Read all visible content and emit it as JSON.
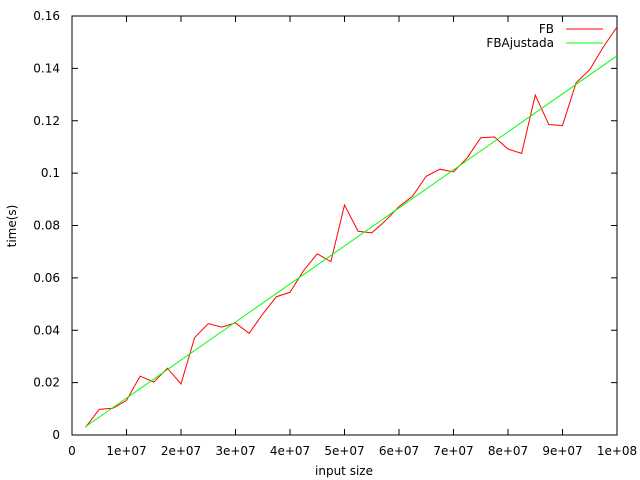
{
  "chart_data": {
    "type": "line",
    "title": "",
    "xlabel": "input size",
    "ylabel": "time(s)",
    "xlim": [
      0,
      100000000
    ],
    "ylim": [
      0,
      0.16
    ],
    "x_ticks": [
      0,
      10000000,
      20000000,
      30000000,
      40000000,
      50000000,
      60000000,
      70000000,
      80000000,
      90000000,
      100000000
    ],
    "x_tick_labels": [
      "0",
      "1e+07",
      "2e+07",
      "3e+07",
      "4e+07",
      "5e+07",
      "6e+07",
      "7e+07",
      "8e+07",
      "9e+07",
      "1e+08"
    ],
    "y_ticks": [
      0,
      0.02,
      0.04,
      0.06,
      0.08,
      0.1,
      0.12,
      0.14,
      0.16
    ],
    "y_tick_labels": [
      "0",
      "0.02",
      "0.04",
      "0.06",
      "0.08",
      "0.1",
      "0.12",
      "0.14",
      "0.16"
    ],
    "grid": false,
    "legend_position": "top-right",
    "series": [
      {
        "name": "FB",
        "color": "#ff0000",
        "x": [
          2500000,
          5000000,
          7500000,
          10000000,
          12500000,
          15000000,
          17500000,
          20000000,
          22500000,
          25000000,
          27500000,
          30000000,
          32500000,
          35000000,
          37500000,
          40000000,
          42500000,
          45000000,
          47500000,
          50000000,
          52500000,
          55000000,
          57500000,
          60000000,
          62500000,
          65000000,
          67500000,
          70000000,
          72500000,
          75000000,
          77500000,
          80000000,
          82500000,
          85000000,
          87500000,
          90000000,
          92500000,
          95000000,
          97500000,
          100000000
        ],
        "y": [
          0.003,
          0.0098,
          0.0102,
          0.0132,
          0.0225,
          0.0202,
          0.0255,
          0.0195,
          0.0372,
          0.0425,
          0.0412,
          0.0428,
          0.0388,
          0.0462,
          0.0528,
          0.0545,
          0.0628,
          0.0692,
          0.0662,
          0.0878,
          0.0778,
          0.0772,
          0.0818,
          0.0872,
          0.0912,
          0.0988,
          0.1015,
          0.1005,
          0.1058,
          0.1135,
          0.1138,
          0.1092,
          0.1075,
          0.1298,
          0.1185,
          0.1182,
          0.1345,
          0.1395,
          0.1482,
          0.1558
        ]
      },
      {
        "name": "FBAjustada",
        "color": "#00ff00",
        "x": [
          2500000,
          100000000
        ],
        "y": [
          0.0032,
          0.1448
        ]
      }
    ]
  }
}
